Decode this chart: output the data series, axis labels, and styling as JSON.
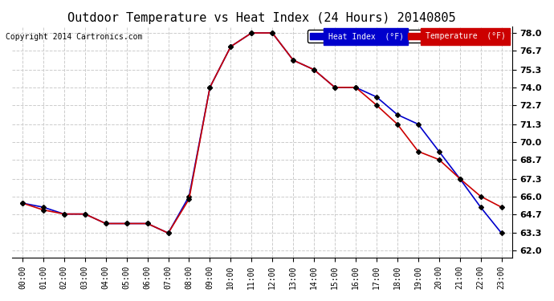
{
  "title": "Outdoor Temperature vs Heat Index (24 Hours) 20140805",
  "copyright": "Copyright 2014 Cartronics.com",
  "background_color": "#ffffff",
  "grid_color": "#cccccc",
  "x_labels": [
    "00:00",
    "01:00",
    "02:00",
    "03:00",
    "04:00",
    "05:00",
    "06:00",
    "07:00",
    "08:00",
    "09:00",
    "10:00",
    "11:00",
    "12:00",
    "13:00",
    "14:00",
    "15:00",
    "16:00",
    "17:00",
    "18:00",
    "19:00",
    "20:00",
    "21:00",
    "22:00",
    "23:00"
  ],
  "y_ticks": [
    62.0,
    63.3,
    64.7,
    66.0,
    67.3,
    68.7,
    70.0,
    71.3,
    72.7,
    74.0,
    75.3,
    76.7,
    78.0
  ],
  "ylim": [
    61.5,
    78.5
  ],
  "heat_index": [
    65.5,
    65.2,
    64.7,
    64.7,
    64.0,
    64.0,
    64.0,
    63.3,
    66.0,
    74.0,
    77.0,
    78.0,
    78.0,
    76.0,
    75.3,
    74.0,
    74.0,
    73.3,
    72.0,
    71.3,
    69.3,
    67.3,
    65.2,
    63.3
  ],
  "temperature": [
    65.5,
    65.0,
    64.7,
    64.7,
    64.0,
    64.0,
    64.0,
    63.3,
    65.8,
    74.0,
    77.0,
    78.0,
    78.0,
    76.0,
    75.3,
    74.0,
    74.0,
    72.7,
    71.3,
    69.3,
    68.7,
    67.3,
    66.0,
    65.2
  ],
  "heat_index_color": "#0000cc",
  "temperature_color": "#cc0000",
  "heat_index_label": "Heat Index  (°F)",
  "temperature_label": "Temperature  (°F)",
  "legend_bg_heat": "#0000cc",
  "legend_bg_temp": "#cc0000",
  "marker": "D",
  "markersize": 3
}
